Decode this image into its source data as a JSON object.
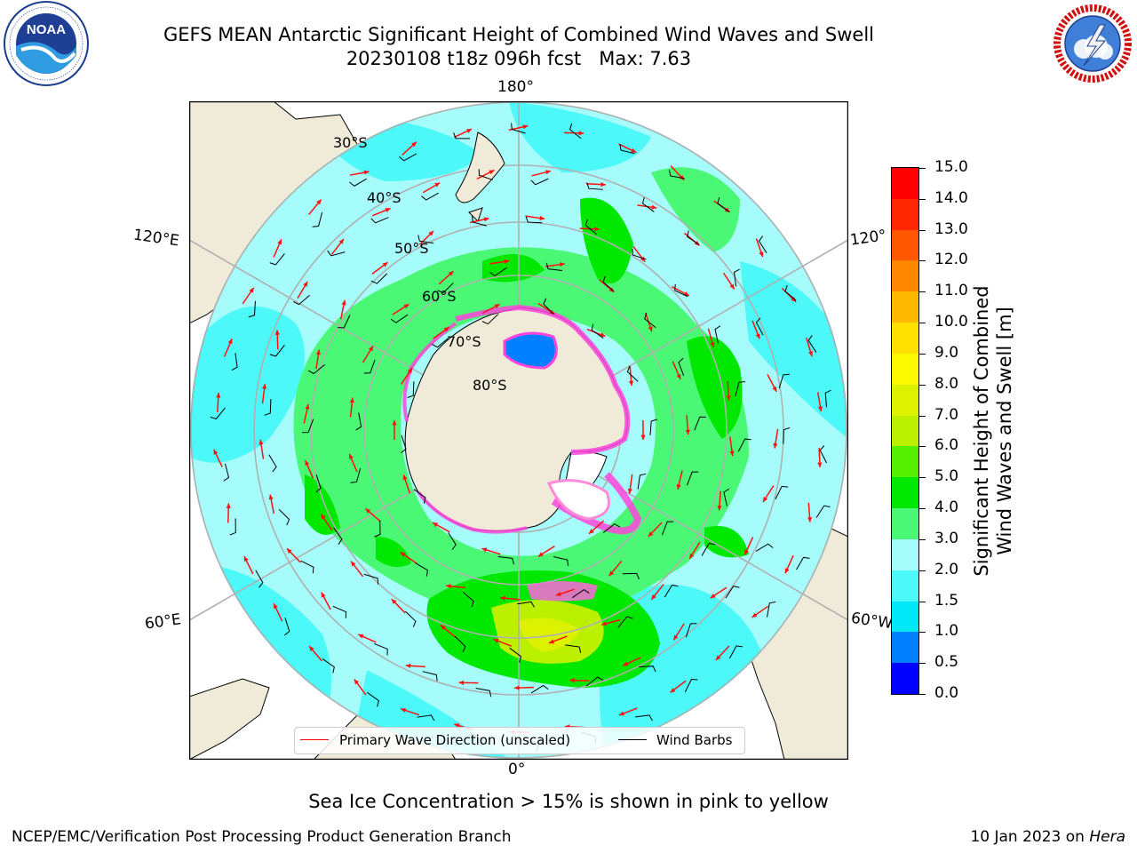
{
  "title": {
    "line1": "GEFS MEAN Antarctic Significant Height of Combined Wind Waves and Swell",
    "line2": "20230108 t18z 096h fcst   Max: 7.63"
  },
  "logos": {
    "left": {
      "text": "NOAA",
      "ring_text": "NATIONAL OCEANIC AND ATMOSPHERIC ADMINISTRATION · U.S. DEPARTMENT OF COMMERCE"
    },
    "right": {
      "text": "NATIONAL WEATHER SERVICE"
    }
  },
  "map": {
    "projection": "south polar stereographic",
    "longitude_labels": [
      "180°",
      "120°E",
      "120°",
      "60°E",
      "60°W",
      "0°"
    ],
    "latitude_labels": [
      "30°S",
      "40°S",
      "50°S",
      "60°S",
      "70°S",
      "80°S"
    ],
    "colors": {
      "land": "#efebd8",
      "ocean_bg": "#a6f9fb",
      "grid": "#b0b0b0",
      "wave_arrow": "#ff1010",
      "barb": "#000000"
    }
  },
  "legend": {
    "items": [
      {
        "label": "Primary Wave Direction (unscaled)",
        "color": "#ff0000"
      },
      {
        "label": "Wind Barbs",
        "color": "#000000"
      }
    ]
  },
  "colorbar": {
    "label_line1": "Significant Height of Combined",
    "label_line2": "Wind Waves and Swell [m]",
    "units": "m",
    "levels": [
      0.0,
      0.5,
      1.0,
      1.5,
      2.0,
      3.0,
      4.0,
      5.0,
      6.0,
      7.0,
      8.0,
      9.0,
      10.0,
      11.0,
      12.0,
      13.0,
      14.0,
      15.0
    ],
    "tick_labels": [
      "0.0",
      "0.5",
      "1.0",
      "1.5",
      "2.0",
      "3.0",
      "4.0",
      "5.0",
      "6.0",
      "7.0",
      "8.0",
      "9.0",
      "10.0",
      "11.0",
      "12.0",
      "13.0",
      "14.0",
      "15.0"
    ],
    "colors": [
      "#0000ff",
      "#0080ff",
      "#00e8f8",
      "#4cf8f8",
      "#a6fbfb",
      "#4bf876",
      "#00e800",
      "#55ee00",
      "#bbf000",
      "#ddf200",
      "#fbf800",
      "#ffe000",
      "#ffb800",
      "#ff8800",
      "#ff5800",
      "#ff2800",
      "#ff0000"
    ]
  },
  "sea_ice_note": "Sea Ice Concentration > 15% is shown in pink to yellow",
  "footer": {
    "left": "NCEP/EMC/Verification Post Processing Product Generation Branch",
    "right_prefix": "10 Jan 2023 on ",
    "right_machine": "Hera"
  }
}
